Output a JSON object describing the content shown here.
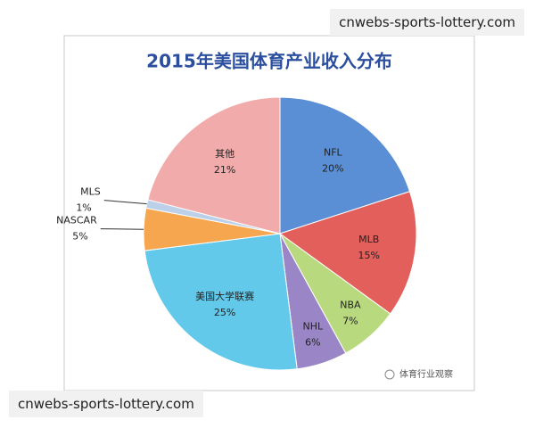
{
  "chart_data": {
    "type": "pie",
    "title": "2015年美国体育产业收入分布",
    "categories": [
      "NFL",
      "MLB",
      "NBA",
      "NHL",
      "美国大学联赛",
      "NASCAR",
      "MLS",
      "其他"
    ],
    "values": [
      20,
      15,
      7,
      6,
      25,
      5,
      1,
      21
    ],
    "value_labels": [
      "20%",
      "15%",
      "7%",
      "6%",
      "25%",
      "5%",
      "1%",
      "21%"
    ],
    "colors": [
      "#5a8fd6",
      "#e35f5c",
      "#b9d97f",
      "#9a86c6",
      "#62c9ea",
      "#f6a64f",
      "#bcd0ea",
      "#f2abab"
    ]
  },
  "watermark_top": "cnwebs-sports-lottery.com",
  "watermark_bottom": "cnwebs-sports-lottery.com",
  "logo_text": "体育行业观察"
}
